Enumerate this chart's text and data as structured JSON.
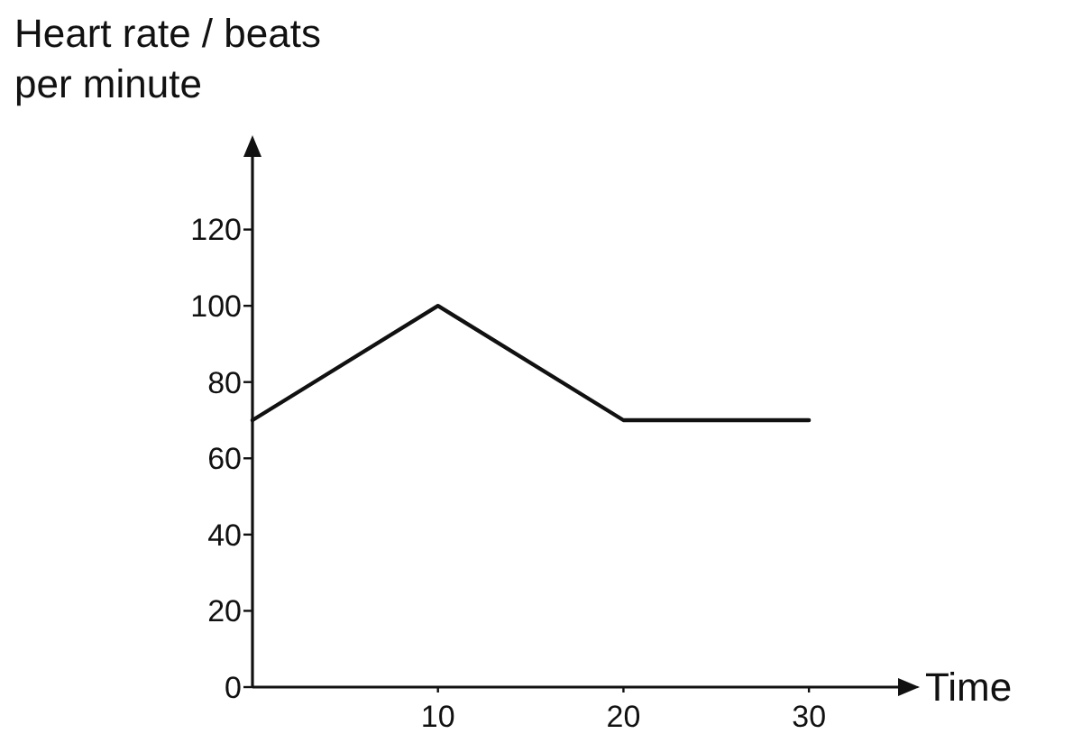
{
  "chart_data": {
    "type": "line",
    "xlabel": "Time",
    "ylabel": "Heart rate / beats per minute",
    "x": [
      0,
      10,
      20,
      30
    ],
    "series": [
      {
        "color": "#111111",
        "values": [
          70,
          100,
          70,
          70
        ]
      }
    ],
    "xlim": [
      0,
      35
    ],
    "xticks": [
      10,
      20,
      30
    ],
    "ylim": [
      0,
      140
    ],
    "yticks": [
      0,
      20,
      40,
      60,
      80,
      100,
      120
    ],
    "marker": "none",
    "line_style": "solid"
  }
}
